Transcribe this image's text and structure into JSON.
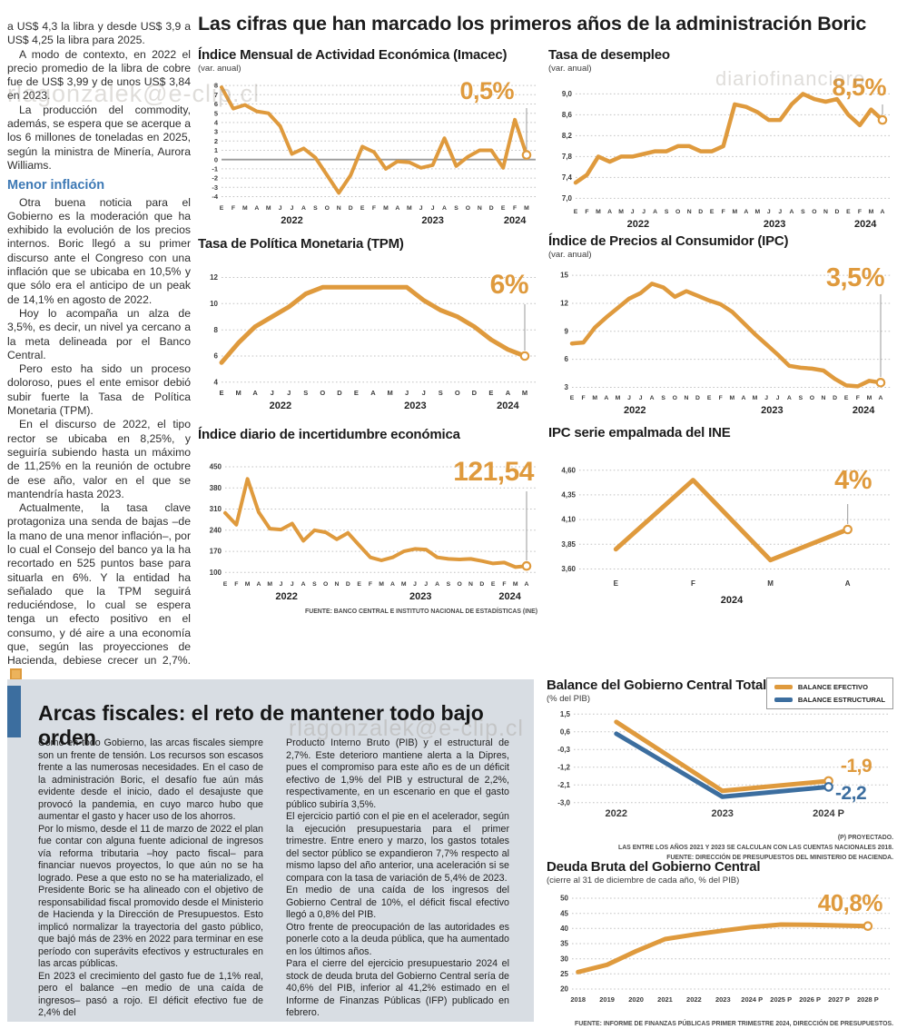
{
  "main_title": "Las cifras que han marcado los primeros años de la administración Boric",
  "watermarks": {
    "email": "rlagonzalek@e-clip.cl",
    "site": "diariofinanciero"
  },
  "left_article": {
    "p1": "a US$ 4,3 la libra y desde US$ 3,9 a US$ 4,25 la libra para 2025.",
    "p2": "A modo de contexto, en 2022 el precio promedio de la libra de cobre fue de US$ 3,99 y de unos US$ 3,84 en 2023.",
    "p3": "La producción del commodity, además, se espera que se acerque a los 6 millones de toneladas en 2025, según la ministra de Minería, Aurora Williams.",
    "subhead": "Menor inflación",
    "p4": "Otra buena noticia para el Gobierno es la moderación que ha exhibido la evolución de los precios internos. Boric llegó a su primer discurso ante el Congreso con una inflación que se ubicaba en 10,5% y que sólo era el anticipo de un peak de 14,1% en agosto de 2022.",
    "p5": "Hoy lo acompaña un alza de 3,5%, es decir, un nivel ya cercano a la meta delineada por el Banco Central.",
    "p6": "Pero esto ha sido un proceso doloroso, pues el ente emisor debió subir fuerte la Tasa de Política Monetaria (TPM).",
    "p7": "En el discurso de 2022, el tipo rector se ubicaba en 8,25%, y seguiría subiendo hasta un máximo de 11,25% en la reunión de octubre de ese año, valor en el que se mantendría hasta 2023.",
    "p8": "Actualmente, la tasa clave protagoniza una senda de bajas –de la mano de una menor inflación–, por lo cual el Consejo del banco ya la ha recortado en 525 puntos base para situarla en 6%. Y la entidad ha señalado que la TPM seguirá reduciéndose, lo cual se espera tenga un efecto positivo en el consumo, y dé aire a una economía que, según las proyecciones de Hacienda, debiese crecer un 2,7%."
  },
  "box_article": {
    "headline": "Arcas fiscales: el reto de mantener todo bajo orden",
    "c1p1": "Como en todo Gobierno, las arcas fiscales siempre son un frente de tensión. Los recursos son escasos frente a las numerosas necesidades. En el caso de la administración Boric, el desafío fue aún más evidente desde el inicio, dado el desajuste que provocó la pandemia, en cuyo marco hubo que aumentar el gasto y hacer uso de los ahorros.",
    "c1p2": "Por lo mismo, desde el 11 de marzo de 2022 el plan fue contar con alguna fuente adicional de ingresos vía reforma tributaria –hoy pacto fiscal– para financiar nuevos proyectos, lo que aún no se ha logrado. Pese a que esto no se ha materializado, el Presidente Boric se ha alineado con el objetivo de responsabilidad fiscal promovido desde el Ministerio de Hacienda y la Dirección de Presupuestos. Esto implicó normalizar la trayectoria del gasto público, que bajó más de 23% en 2022 para terminar en ese período con superávits efectivos y estructurales en las arcas públicas.",
    "c1p3": "En 2023 el crecimiento del gasto fue de 1,1% real, pero el balance –en medio de una caída de ingresos– pasó a rojo. El déficit efectivo fue de 2,4% del",
    "c2p1": "Producto Interno Bruto (PIB) y el estructural de 2,7%. Este deterioro mantiene alerta a la Dipres, pues el compromiso para este año es de un déficit efectivo de 1,9% del PIB y estructural de 2,2%, respectivamente, en un escenario en que el gasto público subiría 3,5%.",
    "c2p2": "El ejercicio partió con el pie en el acelerador, según la ejecución presupuestaria para el primer trimestre. Entre enero y marzo, los gastos totales del sector público se expandieron 7,7% respecto al mismo lapso del año anterior, una aceleración si se compara con la tasa de variación de 5,4% de 2023.",
    "c2p3": "En medio de una caída de los ingresos del Gobierno Central de 10%, el déficit fiscal efectivo llegó a 0,8% del PIB.",
    "c2p4": "Otro frente de preocupación de las autoridades es ponerle coto a la deuda pública, que ha aumentado en los últimos años.",
    "c2p5": "Para el cierre del ejercicio presupuestario 2024 el stock de deuda bruta del Gobierno Central sería de 40,6% del PIB, inferior al 41,2% estimado en el Informe de Finanzas Públicas (IFP) publicado en febrero."
  },
  "chart_data": [
    {
      "id": "imacec",
      "type": "line",
      "title": "Índice Mensual de Actividad Económica (Imacec)",
      "subtitle": "(var. anual)",
      "value_label": "0,5%",
      "color": "#DF9A3D",
      "ylim": [
        -4.25,
        8.3
      ],
      "zero_line": true,
      "yticks": [
        {
          "l": "8",
          "v": 8
        },
        {
          "l": "7",
          "v": 7
        },
        {
          "l": "6",
          "v": 6
        },
        {
          "l": "5",
          "v": 5
        },
        {
          "l": "4",
          "v": 4
        },
        {
          "l": "3",
          "v": 3
        },
        {
          "l": "2",
          "v": 2
        },
        {
          "l": "1",
          "v": 1
        },
        {
          "l": "0",
          "v": 0
        },
        {
          "l": "-1",
          "v": -1
        },
        {
          "l": "-2",
          "v": -2
        },
        {
          "l": "-3",
          "v": -3
        },
        {
          "l": "-4",
          "v": -4
        }
      ],
      "categories": [
        "E",
        "F",
        "M",
        "A",
        "M",
        "J",
        "J",
        "A",
        "S",
        "O",
        "N",
        "D",
        "E",
        "F",
        "M",
        "A",
        "M",
        "J",
        "J",
        "A",
        "S",
        "O",
        "N",
        "D",
        "E",
        "F",
        "M"
      ],
      "values": [
        7.8,
        5.5,
        5.9,
        5.2,
        5.0,
        3.6,
        0.6,
        1.2,
        0.2,
        -1.7,
        -3.6,
        -1.7,
        1.4,
        0.8,
        -1.0,
        -0.2,
        -0.3,
        -0.9,
        -0.6,
        2.3,
        -0.7,
        0.3,
        1.0,
        1.0,
        -0.9,
        4.3,
        0.5
      ],
      "year_labels": [
        {
          "label": "2022",
          "at": 6
        },
        {
          "label": "2023",
          "at": 18
        },
        {
          "label": "2024",
          "at": 25
        }
      ]
    },
    {
      "id": "desempleo",
      "type": "line",
      "title": "Tasa de desempleo",
      "subtitle": "(var. anual)",
      "value_label": "8,5%",
      "color": "#DF9A3D",
      "ylim": [
        6.92,
        9.18
      ],
      "yticks": [
        {
          "l": "9,0",
          "v": 9.0
        },
        {
          "l": "8,6",
          "v": 8.6
        },
        {
          "l": "8,2",
          "v": 8.2
        },
        {
          "l": "7,8",
          "v": 7.8
        },
        {
          "l": "7,4",
          "v": 7.4
        },
        {
          "l": "7,0",
          "v": 7.0
        }
      ],
      "categories": [
        "E",
        "F",
        "M",
        "A",
        "M",
        "J",
        "J",
        "A",
        "S",
        "O",
        "N",
        "D",
        "E",
        "F",
        "M",
        "A",
        "M",
        "J",
        "J",
        "A",
        "S",
        "O",
        "N",
        "D",
        "E",
        "F",
        "M",
        "A"
      ],
      "values": [
        7.3,
        7.45,
        7.8,
        7.7,
        7.8,
        7.8,
        7.85,
        7.9,
        7.9,
        8.0,
        8.0,
        7.9,
        7.9,
        8.0,
        8.8,
        8.75,
        8.65,
        8.5,
        8.5,
        8.8,
        9.0,
        8.9,
        8.85,
        8.9,
        8.6,
        8.4,
        8.7,
        8.5
      ],
      "year_labels": [
        {
          "label": "2022",
          "at": 5.5
        },
        {
          "label": "2023",
          "at": 17.5
        },
        {
          "label": "2024",
          "at": 25.5
        }
      ]
    },
    {
      "id": "tpm",
      "type": "line",
      "title": "Tasa de Política Monetaria (TPM)",
      "value_label": "6%",
      "color": "#DF9A3D",
      "ylim": [
        3.85,
        12.45
      ],
      "yticks": [
        {
          "l": "12",
          "v": 12
        },
        {
          "l": "10",
          "v": 10
        },
        {
          "l": "8",
          "v": 8
        },
        {
          "l": "6",
          "v": 6
        },
        {
          "l": "4",
          "v": 4
        }
      ],
      "categories": [
        "E",
        "M",
        "A",
        "J",
        "J",
        "S",
        "O",
        "D",
        "E",
        "A",
        "M",
        "J",
        "J",
        "S",
        "O",
        "D",
        "E",
        "A",
        "M"
      ],
      "values": [
        5.5,
        7.0,
        8.25,
        9.0,
        9.75,
        10.75,
        11.25,
        11.25,
        11.25,
        11.25,
        11.25,
        11.25,
        10.25,
        9.5,
        9.0,
        8.25,
        7.25,
        6.5,
        6.0
      ],
      "year_labels": [
        {
          "label": "2022",
          "at": 3.5
        },
        {
          "label": "2023",
          "at": 11.5
        },
        {
          "label": "2024",
          "at": 17
        }
      ]
    },
    {
      "id": "ipc",
      "type": "line",
      "title": "Índice de Precios al Consumidor (IPC)",
      "subtitle": "(var. anual)",
      "value_label": "3,5%",
      "color": "#DF9A3D",
      "ylim": [
        2.85,
        15.5
      ],
      "yticks": [
        {
          "l": "15",
          "v": 15
        },
        {
          "l": "12",
          "v": 12
        },
        {
          "l": "9",
          "v": 9
        },
        {
          "l": "6",
          "v": 6
        },
        {
          "l": "3",
          "v": 3
        }
      ],
      "categories": [
        "E",
        "F",
        "M",
        "A",
        "M",
        "J",
        "J",
        "A",
        "S",
        "O",
        "N",
        "D",
        "E",
        "F",
        "M",
        "A",
        "M",
        "J",
        "J",
        "A",
        "S",
        "O",
        "N",
        "D",
        "E",
        "F",
        "M",
        "A"
      ],
      "values": [
        7.7,
        7.8,
        9.4,
        10.5,
        11.5,
        12.5,
        13.1,
        14.1,
        13.7,
        12.7,
        13.3,
        12.8,
        12.3,
        11.9,
        11.1,
        9.9,
        8.7,
        7.6,
        6.5,
        5.3,
        5.1,
        5.0,
        4.8,
        3.9,
        3.2,
        3.1,
        3.7,
        3.5
      ],
      "year_labels": [
        {
          "label": "2022",
          "at": 5.5
        },
        {
          "label": "2023",
          "at": 17.5
        },
        {
          "label": "2024",
          "at": 25.5
        }
      ]
    },
    {
      "id": "incertidumbre",
      "type": "line",
      "title": "Índice diario de incertidumbre económica",
      "value_label": "121,54",
      "color": "#DF9A3D",
      "ylim": [
        92,
        465
      ],
      "yticks": [
        {
          "l": "450",
          "v": 450
        },
        {
          "l": "380",
          "v": 380
        },
        {
          "l": "310",
          "v": 310
        },
        {
          "l": "240",
          "v": 240
        },
        {
          "l": "170",
          "v": 170
        },
        {
          "l": "100",
          "v": 100
        }
      ],
      "categories": [
        "E",
        "F",
        "M",
        "A",
        "M",
        "J",
        "J",
        "A",
        "S",
        "O",
        "N",
        "D",
        "E",
        "F",
        "M",
        "A",
        "M",
        "J",
        "J",
        "A",
        "S",
        "O",
        "N",
        "D",
        "E",
        "F",
        "M",
        "A"
      ],
      "values": [
        297,
        258,
        410,
        300,
        245,
        242,
        262,
        205,
        240,
        233,
        210,
        231,
        190,
        150,
        140,
        150,
        170,
        178,
        176,
        150,
        145,
        143,
        145,
        138,
        130,
        133,
        118,
        121.54
      ],
      "year_labels": [
        {
          "label": "2022",
          "at": 5.5
        },
        {
          "label": "2023",
          "at": 17.5
        },
        {
          "label": "2024",
          "at": 25.5
        }
      ],
      "source": "FUENTE: BANCO CENTRAL E INSTITUTO NACIONAL DE ESTADÍSTICAS (INE)"
    },
    {
      "id": "ipc_empalmada",
      "type": "line",
      "title": "IPC serie empalmada del INE",
      "value_label": "4%",
      "color": "#DF9A3D",
      "ylim": [
        3.54,
        4.68
      ],
      "yticks": [
        {
          "l": "4,60",
          "v": 4.6
        },
        {
          "l": "4,35",
          "v": 4.35
        },
        {
          "l": "4,10",
          "v": 4.1
        },
        {
          "l": "3,85",
          "v": 3.85
        },
        {
          "l": "3,60",
          "v": 3.6
        }
      ],
      "categories": [
        "E",
        "F",
        "M",
        "A"
      ],
      "values": [
        3.8,
        4.5,
        3.69,
        4.0
      ],
      "year_labels": [
        {
          "label": "2024",
          "at": 1.5
        }
      ]
    },
    {
      "id": "balance",
      "type": "line",
      "title": "Balance del Gobierno Central Total",
      "subtitle": "(% del PIB)",
      "ylim": [
        -3.15,
        1.65
      ],
      "yticks": [
        {
          "l": "1,5",
          "v": 1.5
        },
        {
          "l": "0,6",
          "v": 0.6
        },
        {
          "l": "-0,3",
          "v": -0.3
        },
        {
          "l": "-1,2",
          "v": -1.2
        },
        {
          "l": "-2,1",
          "v": -2.1
        },
        {
          "l": "-3,0",
          "v": -3.0
        }
      ],
      "categories": [
        "2022",
        "2023",
        "2024 P"
      ],
      "legend": [
        {
          "label": "BALANCE EFECTIVO",
          "color": "#DF9A3D"
        },
        {
          "label": "BALANCE ESTRUCTURAL",
          "color": "#3C6E9F"
        }
      ],
      "series": [
        {
          "name": "Balance efectivo",
          "color": "#DF9A3D",
          "values": [
            1.1,
            -2.4,
            -1.9
          ],
          "end_label": "-1,9"
        },
        {
          "name": "Balance estructural",
          "color": "#3C6E9F",
          "values": [
            0.5,
            -2.7,
            -2.2
          ],
          "end_label": "-2,2"
        }
      ],
      "footnotes": [
        "(P) PROYECTADO.",
        "LAS ENTRE LOS AÑOS 2021 Y 2023 SE CALCULAN  CON LAS CUENTAS NACIONALES 2018.",
        "FUENTE: DIRECCIÓN DE PRESUPUESTOS DEL MINISTERIO DE HACIENDA."
      ]
    },
    {
      "id": "deuda",
      "type": "line",
      "title": "Deuda Bruta del Gobierno Central",
      "subtitle": "(cierre al 31 de diciembre de cada año, % del PIB)",
      "value_label": "40,8%",
      "color": "#DF9A3D",
      "ylim": [
        19.4,
        50.6
      ],
      "yticks": [
        {
          "l": "50",
          "v": 50
        },
        {
          "l": "45",
          "v": 45
        },
        {
          "l": "40",
          "v": 40
        },
        {
          "l": "35",
          "v": 35
        },
        {
          "l": "30",
          "v": 30
        },
        {
          "l": "25",
          "v": 25
        },
        {
          "l": "20",
          "v": 20
        }
      ],
      "categories": [
        "2018",
        "2019",
        "2020",
        "2021",
        "2022",
        "2023",
        "2024 P",
        "2025 P",
        "2026 P",
        "2027 P",
        "2028 P"
      ],
      "values": [
        25.6,
        28.0,
        32.5,
        36.5,
        38.0,
        39.3,
        40.5,
        41.3,
        41.2,
        41.0,
        40.8
      ],
      "source": "FUENTE: INFORME DE FINANZAS PÚBLICAS PRIMER TRIMESTRE 2024, DIRECCIÓN DE PRESUPUESTOS."
    }
  ]
}
